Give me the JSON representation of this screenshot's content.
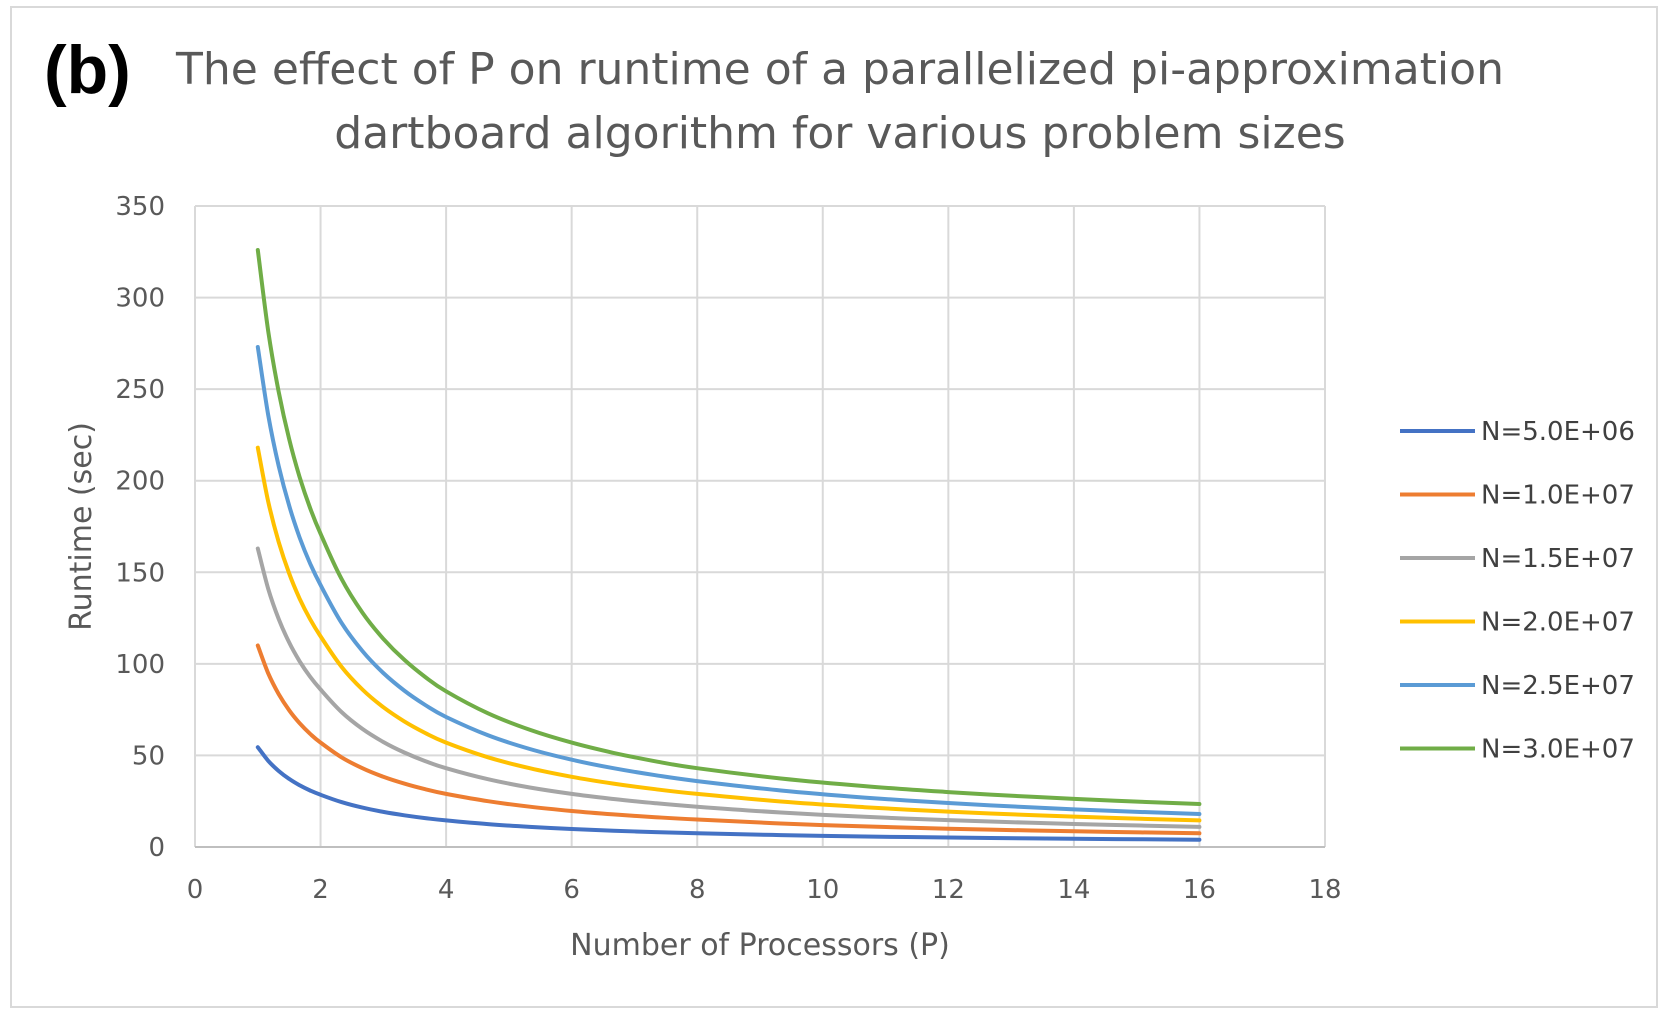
{
  "panel_label": "(b)",
  "chart_data": {
    "type": "line",
    "title": "The effect of P on runtime of a parallelized pi-approximation\ndartboard algorithm for various problem sizes",
    "xlabel": "Number of Processors (P)",
    "ylabel": "Runtime (sec)",
    "xlim": [
      0,
      18
    ],
    "ylim": [
      0,
      350
    ],
    "xticks": [
      0,
      2,
      4,
      6,
      8,
      10,
      12,
      14,
      16,
      18
    ],
    "yticks": [
      0,
      50,
      100,
      150,
      200,
      250,
      300,
      350
    ],
    "grid": true,
    "legend_position": "right",
    "x": [
      1,
      2,
      4,
      8,
      16
    ],
    "series": [
      {
        "name": "N=5.0E+06",
        "color": "#4472c4",
        "values": [
          54.5,
          28.5,
          14.5,
          7.5,
          4
        ]
      },
      {
        "name": "N=1.0E+07",
        "color": "#ed7d31",
        "values": [
          110,
          57,
          29,
          15,
          7.5
        ]
      },
      {
        "name": "N=1.5E+07",
        "color": "#a5a5a5",
        "values": [
          163,
          86,
          43,
          22,
          11
        ]
      },
      {
        "name": "N=2.0E+07",
        "color": "#ffc000",
        "values": [
          218,
          115,
          57,
          29,
          14.5
        ]
      },
      {
        "name": "N=2.5E+07",
        "color": "#5b9bd5",
        "values": [
          273,
          143,
          71,
          36,
          18
        ]
      },
      {
        "name": "N=3.0E+07",
        "color": "#70ad47",
        "values": [
          326,
          171,
          85,
          43,
          23.5
        ]
      }
    ]
  }
}
